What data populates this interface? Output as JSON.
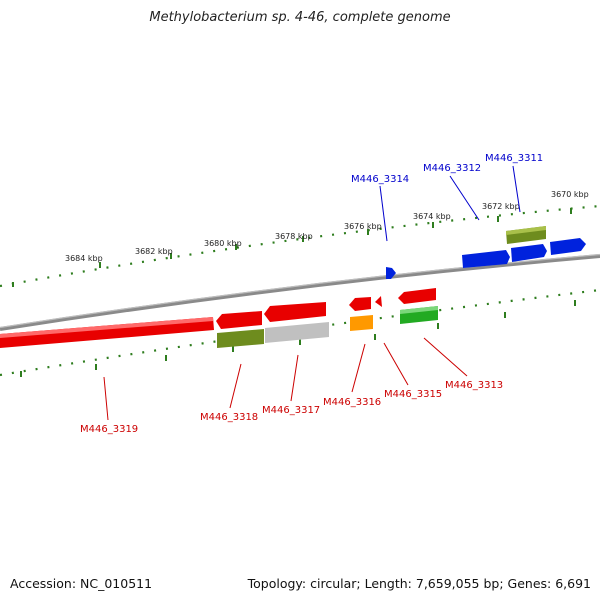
{
  "title": "Methylobacterium sp. 4-46, complete genome",
  "footer": {
    "accession": "Accession: NC_010511",
    "topology": "Topology: circular; Length: 7,659,055 bp; Genes: 6,691"
  },
  "colors": {
    "backbone": "#8a8a8a",
    "tick": "#2e7d1e",
    "plus_label": "#0000cc",
    "minus_label": "#cc0000",
    "gene_red": "#e80000",
    "gene_blue": "#0022dd",
    "gene_olive": "#6e8c1e",
    "gene_grey": "#c0c0c0",
    "gene_orange": "#ff9900",
    "gene_green": "#22aa22"
  },
  "scale_labels": [
    "3684 kbp",
    "3682 kbp",
    "3680 kbp",
    "3678 kbp",
    "3676 kbp",
    "3674 kbp",
    "3672 kbp",
    "3670 kbp"
  ],
  "plus_genes": [
    "M446_3314",
    "M446_3312",
    "M446_3311"
  ],
  "minus_genes": [
    "M446_3319",
    "M446_3318",
    "M446_3317",
    "M446_3316",
    "M446_3315",
    "M446_3313"
  ]
}
